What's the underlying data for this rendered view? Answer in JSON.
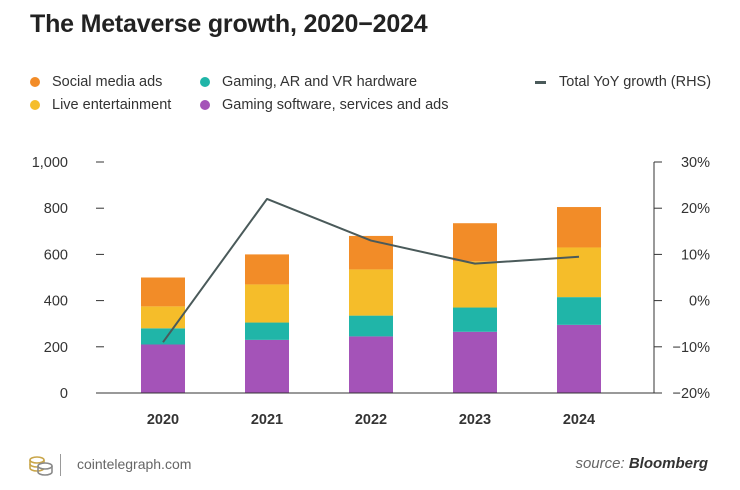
{
  "title": "The Metaverse growth, 2020−2024",
  "legend": {
    "social": "Social media ads",
    "gaming_hw": "Gaming, AR and VR hardware",
    "live": "Live entertainment",
    "gaming_sw": "Gaming software, services and ads",
    "growth": "Total YoY growth (RHS)"
  },
  "colors": {
    "social": "#f28c28",
    "live": "#f5bd2a",
    "gaming_hw": "#20b5a8",
    "gaming_sw": "#a453b8",
    "line": "#4a5a5a",
    "axis": "#333333"
  },
  "chart_data": {
    "type": "bar",
    "stacked": true,
    "categories": [
      "2020",
      "2021",
      "2022",
      "2023",
      "2024"
    ],
    "series": [
      {
        "key": "gaming_sw",
        "name": "Gaming software, services and ads",
        "values": [
          210,
          230,
          245,
          265,
          295
        ]
      },
      {
        "key": "gaming_hw",
        "name": "Gaming, AR and VR hardware",
        "values": [
          70,
          75,
          90,
          105,
          120
        ]
      },
      {
        "key": "live",
        "name": "Live entertainment",
        "values": [
          95,
          165,
          200,
          200,
          215
        ]
      },
      {
        "key": "social",
        "name": "Social media ads",
        "values": [
          125,
          130,
          145,
          165,
          175
        ]
      }
    ],
    "line": {
      "name": "Total YoY growth (RHS)",
      "axis": "right",
      "values": [
        -9,
        22,
        13,
        8,
        9.5
      ]
    },
    "ylim": [
      0,
      1000
    ],
    "yticks": [
      "1,000",
      "800",
      "600",
      "400",
      "200",
      "0"
    ],
    "ytick_values": [
      1000,
      800,
      600,
      400,
      200,
      0
    ],
    "y2lim": [
      -20,
      30
    ],
    "y2ticks": [
      "30%",
      "20%",
      "10%",
      "0%",
      "−10%",
      "−20%"
    ],
    "y2tick_values": [
      30,
      20,
      10,
      0,
      -10,
      -20
    ]
  },
  "footer": {
    "site": "cointelegraph.com",
    "source_prefix": "source:",
    "source_name": "Bloomberg"
  }
}
